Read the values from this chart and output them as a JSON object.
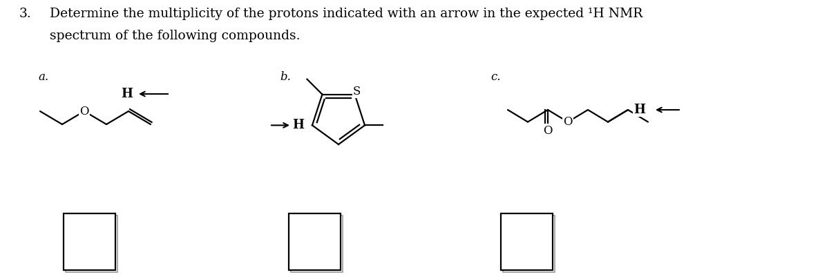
{
  "title_num": "3.",
  "title_line1": "Determine the multiplicity of the protons indicated with an arrow in the expected ¹H NMR",
  "title_line2": "spectrum of the following compounds.",
  "label_a": "a.",
  "label_b": "b.",
  "label_c": "c.",
  "bg_color": "#ffffff",
  "line_color": "#000000",
  "text_color": "#000000",
  "box_color": "#000000",
  "font_size_title": 13.5,
  "font_size_label": 12,
  "font_size_atom": 12,
  "lw": 1.6
}
